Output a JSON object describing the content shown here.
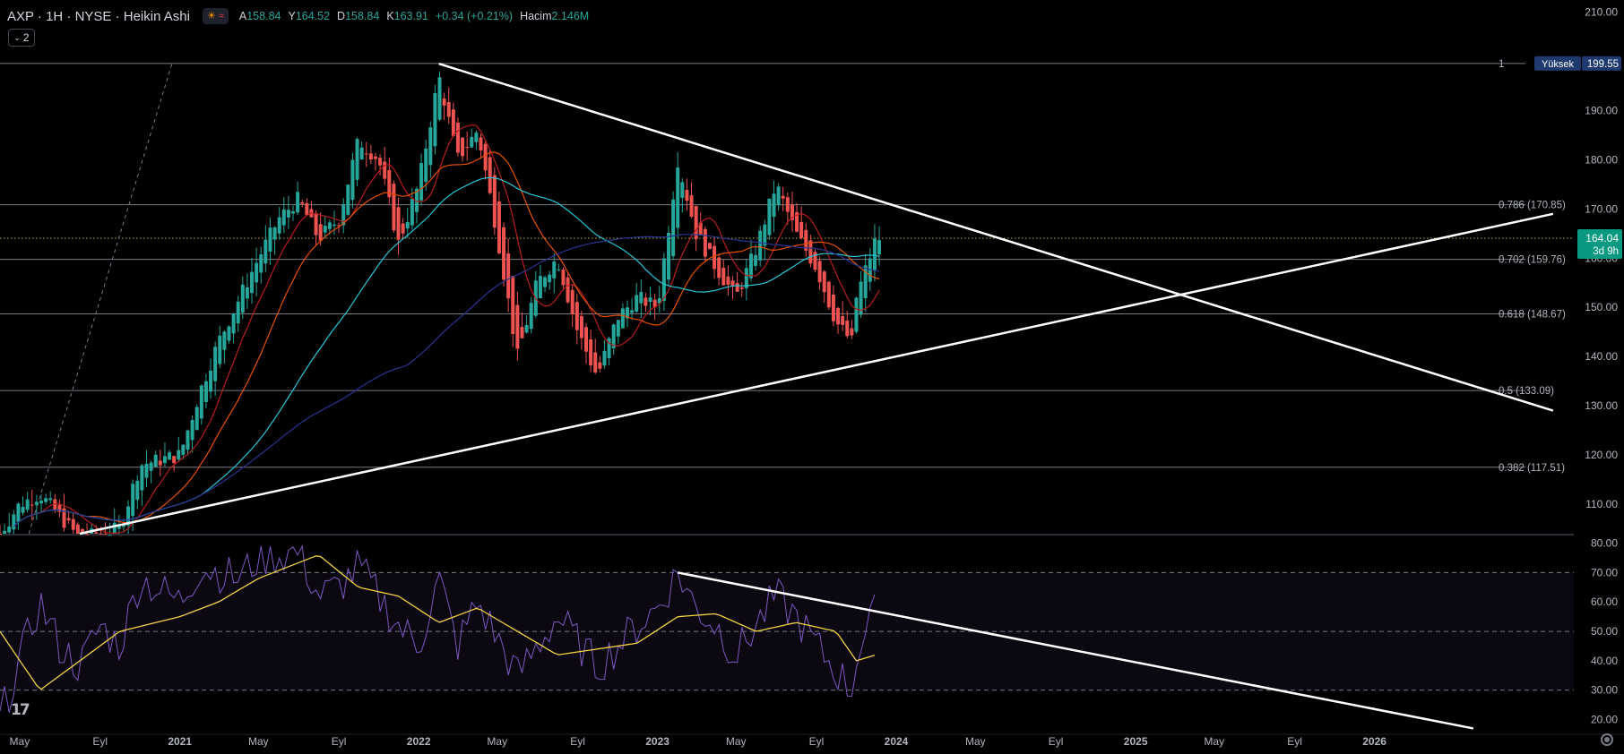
{
  "header": {
    "symbol": "AXP · 1H · NYSE · Heikin Ashi",
    "ohlc": [
      {
        "label": "A",
        "value": "158.84"
      },
      {
        "label": "Y",
        "value": "164.52"
      },
      {
        "label": "D",
        "value": "158.84"
      },
      {
        "label": "K",
        "value": "163.91"
      }
    ],
    "change": "+0.34 (+0.21%)",
    "volume_label": "Hacim",
    "volume_value": "2.146M",
    "collapse_count": "2"
  },
  "colors": {
    "background": "#000000",
    "up": "#26a69a",
    "down": "#ef5350",
    "ma_fast": "#b71c1c",
    "ma_mid": "#e65100",
    "ma_slow": "#26c6da",
    "ma_long": "#283593",
    "rsi": "#7e57c2",
    "rsi_ma": "#f5d442",
    "trendline": "#ffffff",
    "fib_line": "#787b86",
    "last_price_tag": "#089981"
  },
  "icons": [
    "sun-icon",
    "wave-icon",
    "chevron-down-icon",
    "settings-gear-icon",
    "tradingview-logo-icon"
  ],
  "chart_data": [
    {
      "type": "candlestick",
      "title": "AXP · 1H · NYSE · Heikin Ashi",
      "x_tick_labels": [
        "May",
        "Eyl",
        "2021",
        "May",
        "Eyl",
        "2022",
        "May",
        "Eyl",
        "2023",
        "May",
        "Eyl",
        "2024",
        "May",
        "Eyl",
        "2025",
        "May",
        "Eyl",
        "2026"
      ],
      "y_tick_labels": [
        "210.00",
        "190.00",
        "180.00",
        "170.00",
        "150.00",
        "140.00",
        "130.00",
        "120.00",
        "110.00"
      ],
      "ylim": [
        104,
        211
      ],
      "grid": false,
      "last_price": {
        "value": "164.04",
        "countdown": "3d 9h"
      },
      "high_marker": {
        "label": "Yüksek",
        "value": "199.55"
      },
      "fib_levels": [
        {
          "label": "1",
          "value": 199.55
        },
        {
          "label": "0.786 (170.85)",
          "value": 170.85
        },
        {
          "label": "0.702 (159.76)",
          "value": 159.76
        },
        {
          "label": "0.618 (148.67)",
          "value": 148.67
        },
        {
          "label": "0.5 (133.09)",
          "value": 133.09
        },
        {
          "label": "0.382 (117.51)",
          "value": 117.51
        }
      ],
      "price_path_keypoints": [
        {
          "x": "2020-04",
          "y": 104
        },
        {
          "x": "2020-05",
          "y": 110
        },
        {
          "x": "2020-06",
          "y": 112
        },
        {
          "x": "2020-08",
          "y": 103
        },
        {
          "x": "2020-10",
          "y": 105
        },
        {
          "x": "2020-11",
          "y": 118
        },
        {
          "x": "2021-01",
          "y": 120
        },
        {
          "x": "2021-02",
          "y": 133
        },
        {
          "x": "2021-03",
          "y": 143
        },
        {
          "x": "2021-05",
          "y": 160
        },
        {
          "x": "2021-06",
          "y": 168
        },
        {
          "x": "2021-07",
          "y": 172
        },
        {
          "x": "2021-08",
          "y": 164
        },
        {
          "x": "2021-09",
          "y": 168
        },
        {
          "x": "2021-10",
          "y": 184
        },
        {
          "x": "2021-11",
          "y": 180
        },
        {
          "x": "2021-12",
          "y": 163
        },
        {
          "x": "2022-01",
          "y": 175
        },
        {
          "x": "2022-02",
          "y": 197
        },
        {
          "x": "2022-03",
          "y": 180
        },
        {
          "x": "2022-04",
          "y": 186
        },
        {
          "x": "2022-05",
          "y": 165
        },
        {
          "x": "2022-06",
          "y": 140
        },
        {
          "x": "2022-07",
          "y": 155
        },
        {
          "x": "2022-08",
          "y": 160
        },
        {
          "x": "2022-09",
          "y": 145
        },
        {
          "x": "2022-10",
          "y": 136
        },
        {
          "x": "2022-11",
          "y": 148
        },
        {
          "x": "2022-12",
          "y": 152
        },
        {
          "x": "2023-01",
          "y": 150
        },
        {
          "x": "2023-02",
          "y": 180
        },
        {
          "x": "2023-03",
          "y": 165
        },
        {
          "x": "2023-04",
          "y": 158
        },
        {
          "x": "2023-05",
          "y": 152
        },
        {
          "x": "2023-06",
          "y": 162
        },
        {
          "x": "2023-07",
          "y": 175
        },
        {
          "x": "2023-08",
          "y": 165
        },
        {
          "x": "2023-09",
          "y": 158
        },
        {
          "x": "2023-10",
          "y": 147
        },
        {
          "x": "2023-10-25",
          "y": 143
        },
        {
          "x": "2023-11",
          "y": 152
        },
        {
          "x": "2023-12",
          "y": 164
        }
      ],
      "trendlines": [
        {
          "name": "descending-resistance",
          "from": {
            "x": "2022-02",
            "y": 199.5
          },
          "to": {
            "x": "2026-10",
            "y": 129
          }
        },
        {
          "name": "ascending-support",
          "from": {
            "x": "2020-08",
            "y": 104
          },
          "to": {
            "x": "2026-10",
            "y": 169
          }
        }
      ]
    },
    {
      "type": "line",
      "x_tick_labels": [
        "May",
        "Eyl",
        "2021",
        "May",
        "Eyl",
        "2022",
        "May",
        "Eyl",
        "2023",
        "May",
        "Eyl",
        "2024",
        "May",
        "Eyl",
        "2025",
        "May",
        "Eyl",
        "2026"
      ],
      "y_tick_labels": [
        "80.00",
        "70.00",
        "60.00",
        "50.00",
        "40.00",
        "30.00",
        "20.00"
      ],
      "ylim": [
        15,
        82
      ],
      "bands": [
        70,
        50,
        30
      ],
      "series": [
        {
          "key": "rsi",
          "values": [
            {
              "x": "2020-04",
              "y": 20
            },
            {
              "x": "2020-05",
              "y": 40
            },
            {
              "x": "2020-06",
              "y": 60
            },
            {
              "x": "2020-07",
              "y": 45
            },
            {
              "x": "2020-08",
              "y": 38
            },
            {
              "x": "2020-09",
              "y": 52
            },
            {
              "x": "2020-10",
              "y": 45
            },
            {
              "x": "2020-11",
              "y": 68
            },
            {
              "x": "2021-01",
              "y": 60
            },
            {
              "x": "2021-02",
              "y": 72
            },
            {
              "x": "2021-04",
              "y": 68
            },
            {
              "x": "2021-05",
              "y": 75
            },
            {
              "x": "2021-07",
              "y": 77
            },
            {
              "x": "2021-08",
              "y": 62
            },
            {
              "x": "2021-09",
              "y": 65
            },
            {
              "x": "2021-10",
              "y": 72
            },
            {
              "x": "2021-12",
              "y": 52
            },
            {
              "x": "2022-01",
              "y": 45
            },
            {
              "x": "2022-02",
              "y": 68
            },
            {
              "x": "2022-03",
              "y": 45
            },
            {
              "x": "2022-04",
              "y": 60
            },
            {
              "x": "2022-06",
              "y": 35
            },
            {
              "x": "2022-08",
              "y": 55
            },
            {
              "x": "2022-10",
              "y": 38
            },
            {
              "x": "2022-12",
              "y": 52
            },
            {
              "x": "2023-01",
              "y": 58
            },
            {
              "x": "2023-02",
              "y": 70
            },
            {
              "x": "2023-03",
              "y": 58
            },
            {
              "x": "2023-04",
              "y": 52
            },
            {
              "x": "2023-05",
              "y": 42
            },
            {
              "x": "2023-07",
              "y": 62
            },
            {
              "x": "2023-08",
              "y": 55
            },
            {
              "x": "2023-09",
              "y": 45
            },
            {
              "x": "2023-10-25",
              "y": 30
            },
            {
              "x": "2023-11",
              "y": 42
            },
            {
              "x": "2023-12",
              "y": 57
            }
          ]
        },
        {
          "key": "rsi_ma",
          "values": [
            {
              "x": "2020-04",
              "y": 50
            },
            {
              "x": "2020-06",
              "y": 30
            },
            {
              "x": "2020-08",
              "y": 40
            },
            {
              "x": "2020-10",
              "y": 50
            },
            {
              "x": "2021-01",
              "y": 55
            },
            {
              "x": "2021-03",
              "y": 60
            },
            {
              "x": "2021-05",
              "y": 68
            },
            {
              "x": "2021-08",
              "y": 76
            },
            {
              "x": "2021-10",
              "y": 65
            },
            {
              "x": "2021-12",
              "y": 62
            },
            {
              "x": "2022-02",
              "y": 53
            },
            {
              "x": "2022-04",
              "y": 58
            },
            {
              "x": "2022-06",
              "y": 50
            },
            {
              "x": "2022-08",
              "y": 42
            },
            {
              "x": "2022-10",
              "y": 44
            },
            {
              "x": "2022-12",
              "y": 46
            },
            {
              "x": "2023-02",
              "y": 55
            },
            {
              "x": "2023-04",
              "y": 56
            },
            {
              "x": "2023-06",
              "y": 50
            },
            {
              "x": "2023-08",
              "y": 53
            },
            {
              "x": "2023-10",
              "y": 50
            },
            {
              "x": "2023-11",
              "y": 40
            },
            {
              "x": "2023-12",
              "y": 42
            }
          ]
        }
      ],
      "trendlines": [
        {
          "name": "rsi-descending",
          "from": {
            "x": "2023-02",
            "y": 70
          },
          "to": {
            "x": "2026-06",
            "y": 17
          }
        }
      ]
    }
  ]
}
